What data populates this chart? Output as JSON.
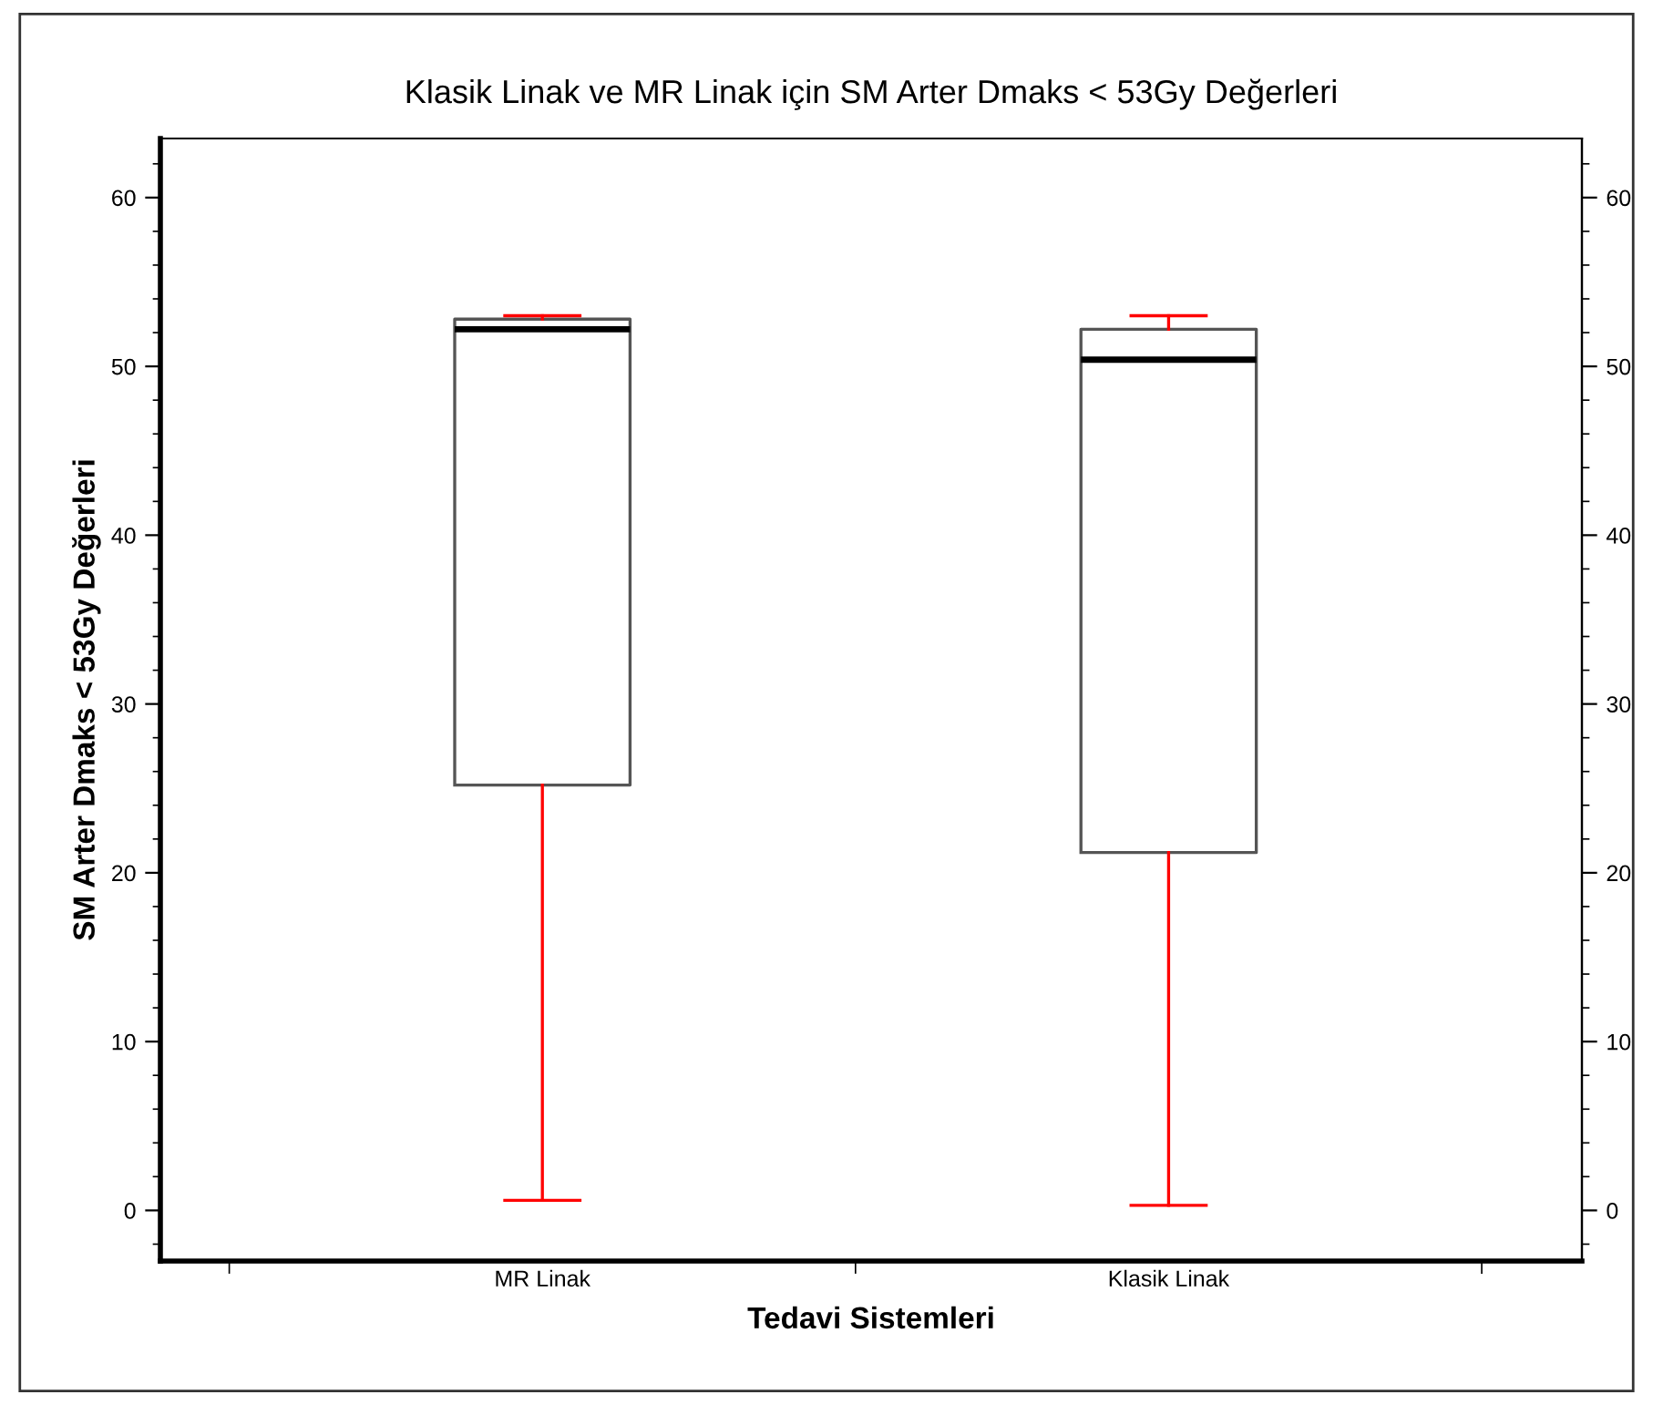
{
  "chart_data": {
    "type": "box",
    "title": "Klasik Linak ve MR Linak için SM Arter Dmaks < 53Gy Değerleri",
    "xlabel": "Tedavi Sistemleri",
    "ylabel": "SM Arter Dmaks < 53Gy Değerleri",
    "categories": [
      "MR Linak",
      "Klasik Linak"
    ],
    "boxes": [
      {
        "low": 0.6,
        "q1": 25.2,
        "median": 52.2,
        "q3": 52.8,
        "high": 53.0
      },
      {
        "low": 0.3,
        "q1": 21.2,
        "median": 50.4,
        "q3": 52.2,
        "high": 53.0
      }
    ],
    "ylim": [
      -3,
      63.5
    ],
    "yticks": [
      0,
      10,
      20,
      30,
      40,
      50,
      60
    ],
    "y2lim": [
      -3,
      63.5
    ],
    "y2ticks": [
      0,
      10,
      20,
      30,
      40,
      50,
      60
    ],
    "grid": false
  }
}
